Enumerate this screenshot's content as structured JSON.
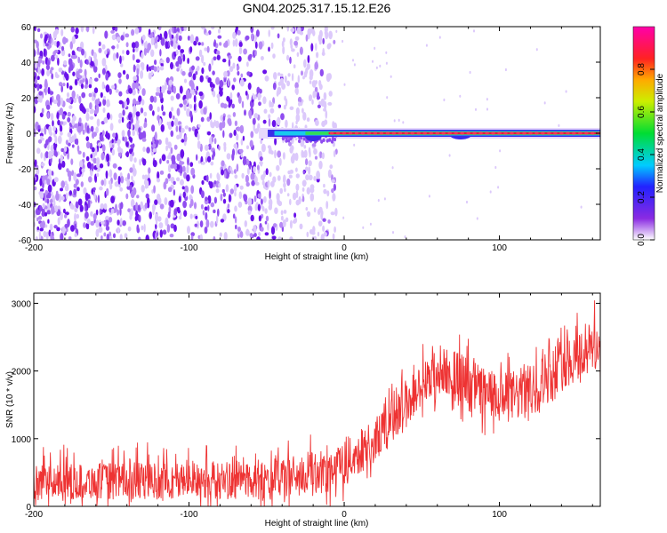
{
  "title": "GN04.2025.317.15.12.E26",
  "chart_data": [
    {
      "type": "heatmap",
      "name": "spectrogram",
      "xlabel": "Height of straight line (km)",
      "ylabel": "Frequency (Hz)",
      "xlim": [
        -200,
        165
      ],
      "ylim": [
        -60,
        60
      ],
      "xticks": [
        -200,
        -100,
        0,
        100
      ],
      "yticks": [
        -60,
        -40,
        -20,
        0,
        20,
        40,
        60
      ],
      "features": {
        "noise_region_x": [
          -200,
          -5
        ],
        "carrier_line_x": [
          -55,
          165
        ],
        "carrier_frequency_hz": 0
      },
      "colorbar": {
        "label": "Normalized spectral amplitude",
        "range": [
          0.0,
          1.0
        ],
        "ticks": [
          0.0,
          0.2,
          0.4,
          0.6,
          0.8
        ],
        "tick_labels": [
          "0.0",
          "0.2",
          "0.4",
          "0.6",
          "0.8"
        ]
      }
    },
    {
      "type": "line",
      "name": "snr",
      "xlabel": "Height of straight line (km)",
      "ylabel": "SNR (10 * v/v)",
      "xlim": [
        -200,
        165
      ],
      "ylim": [
        0,
        3150
      ],
      "xticks": [
        -200,
        -100,
        0,
        100
      ],
      "yticks": [
        0,
        1000,
        2000,
        3000
      ],
      "series_color": "#ee3333",
      "envelope": {
        "x": [
          -200,
          -150,
          -100,
          -50,
          -20,
          0,
          20,
          40,
          60,
          70,
          80,
          100,
          120,
          140,
          165
        ],
        "low": [
          100,
          100,
          100,
          100,
          150,
          300,
          650,
          1150,
          1600,
          1650,
          1400,
          1200,
          1300,
          1700,
          2000
        ],
        "high": [
          600,
          650,
          650,
          700,
          800,
          950,
          1300,
          1900,
          2350,
          2350,
          2200,
          1950,
          2100,
          2500,
          2800
        ]
      }
    }
  ],
  "colors": {
    "noise": [
      "#dcc9fb",
      "#b78af6",
      "#8f4cf0",
      "#6a12ea"
    ],
    "carrier_outer": "#3a2ce8",
    "carrier_mid": "#18c9ee",
    "carrier_inner": "#33dd55",
    "carrier_core": "#e81540"
  }
}
